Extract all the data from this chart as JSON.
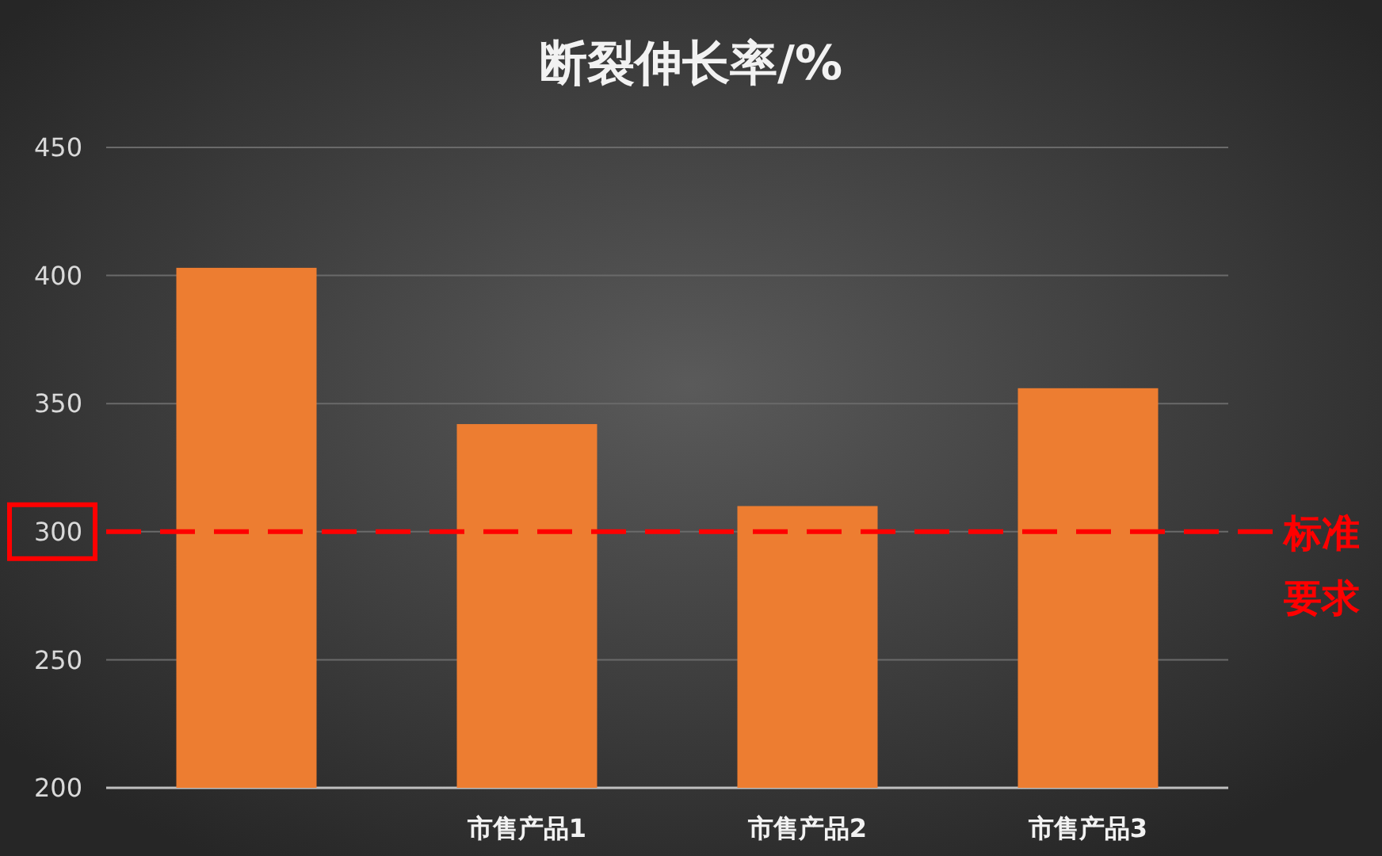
{
  "chart_data": {
    "type": "bar",
    "title": "断裂伸长率/%",
    "categories": [
      null,
      "市售产品1",
      "市售产品2",
      "市售产品3"
    ],
    "values": [
      403,
      342,
      310,
      356
    ],
    "color": "#ed7d31",
    "ylim": [
      200,
      450
    ],
    "yticks": [
      200,
      250,
      300,
      350,
      400,
      450
    ],
    "grid": "y",
    "ref_lines": [
      {
        "axis": "y",
        "value": 300,
        "label": "标准要求",
        "color": "#ff0000",
        "line_style": "dashed"
      }
    ]
  }
}
